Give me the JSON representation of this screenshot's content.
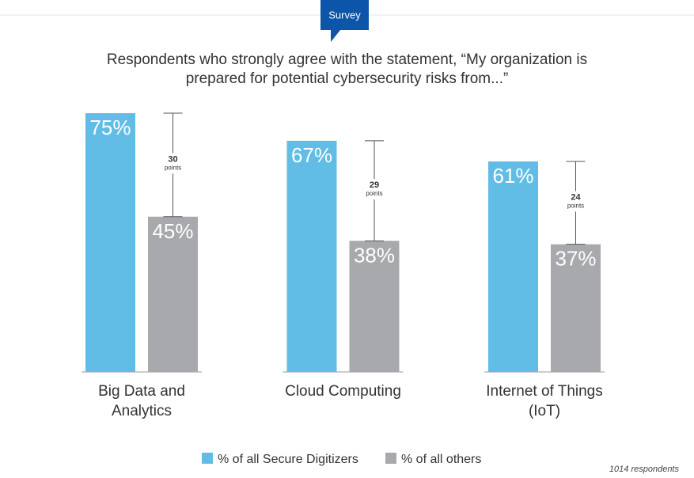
{
  "badge": "Survey",
  "chart_data": {
    "type": "bar",
    "title": [
      "Respondents who strongly agree with the statement, “My organization is",
      "prepared for potential cybersecurity risks from...”"
    ],
    "categories": [
      "Big Data and Analytics",
      "Cloud Computing",
      "Internet of Things (IoT)"
    ],
    "series": [
      {
        "name": "% of all Secure Digitizers",
        "color": "#62bde6",
        "values": [
          75,
          67,
          61
        ],
        "value_labels": [
          "75%",
          "67%",
          "61%"
        ]
      },
      {
        "name": "% of all others",
        "color": "#a7a9ac",
        "values": [
          45,
          38,
          37
        ],
        "value_labels": [
          "45%",
          "38%",
          "37%"
        ]
      }
    ],
    "ylim": [
      0,
      100
    ],
    "differences": [
      30,
      29,
      24
    ],
    "difference_unit": "points",
    "legend": "bottom",
    "footnote": "1014 respondents"
  }
}
